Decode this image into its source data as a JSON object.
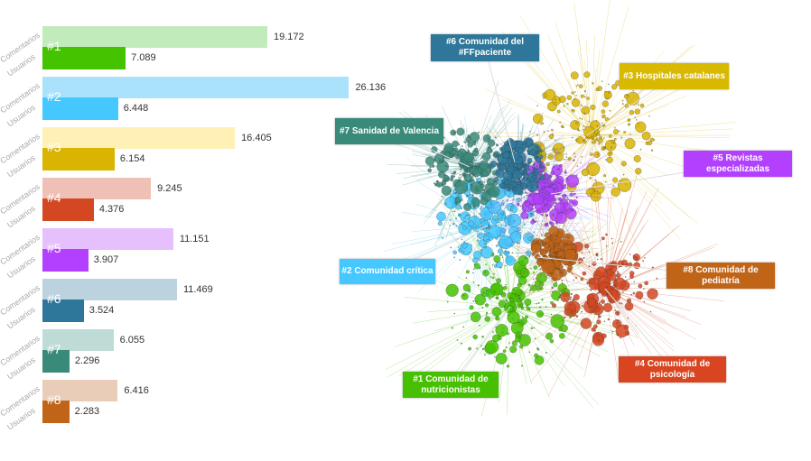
{
  "chart_data": {
    "type": "bar",
    "orientation": "horizontal",
    "series_labels": [
      "Comentarios",
      "Usuarios"
    ],
    "categories": [
      "#1",
      "#2",
      "#3",
      "#4",
      "#5",
      "#6",
      "#7",
      "#8"
    ],
    "series": [
      {
        "name": "Comentarios",
        "values": [
          19172,
          26136,
          16405,
          9245,
          11151,
          11469,
          6055,
          6416
        ],
        "value_labels": [
          "19.172",
          "26.136",
          "16.405",
          "9.245",
          "11.151",
          "11.469",
          "6.055",
          "6.416"
        ]
      },
      {
        "name": "Usuarios",
        "values": [
          7089,
          6448,
          6154,
          4376,
          3907,
          3524,
          2296,
          2283
        ],
        "value_labels": [
          "7.089",
          "6.448",
          "6.154",
          "4.376",
          "3.907",
          "3.524",
          "2.296",
          "2.283"
        ]
      }
    ],
    "colors_light": [
      "#c2ebbb",
      "#aae2fb",
      "#fff0b6",
      "#efc1b6",
      "#e6c0fc",
      "#bcd3df",
      "#bfdbd6",
      "#e9cdb8"
    ],
    "colors_dark": [
      "#46c300",
      "#44c8ff",
      "#d9b400",
      "#d34822",
      "#b340ff",
      "#2e779a",
      "#3a8a7a",
      "#c06418"
    ]
  },
  "communities": [
    {
      "label": "#6 Comunidad del #FFpaciente",
      "color": "#2e779a"
    },
    {
      "label": "#3 Hospitales catalanes",
      "color": "#d9b800"
    },
    {
      "label": "#7 Sanidad de Valencia",
      "color": "#3a8a7a"
    },
    {
      "label": "#5 Revistas especializadas",
      "color": "#b340ff"
    },
    {
      "label": "#2 Comunidad crítica",
      "color": "#44c8ff"
    },
    {
      "label": "#8 Comunidad de pediatría",
      "color": "#c06418"
    },
    {
      "label": "#4 Comunidad de psicología",
      "color": "#d84520"
    },
    {
      "label": "#1 Comunidad de nutricionistas",
      "color": "#46c000"
    }
  ]
}
